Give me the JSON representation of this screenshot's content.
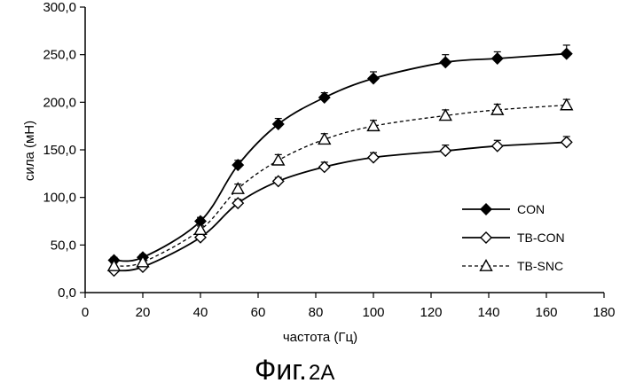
{
  "caption": {
    "main": "Фиг.",
    "suffix": "2A"
  },
  "chart_data": {
    "type": "line",
    "xlabel": "частота (Гц)",
    "ylabel": "сила (мН)",
    "xlim": [
      0,
      180
    ],
    "ylim": [
      0,
      300
    ],
    "xticks": [
      "0",
      "20",
      "40",
      "60",
      "80",
      "100",
      "120",
      "140",
      "160",
      "180"
    ],
    "yticks": [
      "0,0",
      "50,0",
      "100,0",
      "150,0",
      "200,0",
      "250,0",
      "300,0"
    ],
    "grid": false,
    "legend_position": "bottom-right",
    "series": [
      {
        "name": "CON",
        "marker": "filled-diamond",
        "line_style": "solid",
        "x": [
          10,
          20,
          40,
          53,
          67,
          83,
          100,
          125,
          143,
          167
        ],
        "y": [
          34,
          37,
          75,
          134,
          177,
          205,
          225,
          242,
          246,
          251
        ],
        "err": [
          3,
          3,
          4,
          5,
          6,
          5,
          7,
          8,
          7,
          9
        ]
      },
      {
        "name": "TB-CON",
        "marker": "open-diamond",
        "line_style": "solid",
        "x": [
          10,
          20,
          40,
          53,
          67,
          83,
          100,
          125,
          143,
          167
        ],
        "y": [
          23,
          27,
          58,
          94,
          117,
          132,
          142,
          149,
          154,
          158
        ],
        "err": [
          3,
          3,
          4,
          4,
          4,
          5,
          5,
          6,
          6,
          6
        ]
      },
      {
        "name": "TB-SNC",
        "marker": "open-triangle",
        "line_style": "dashed",
        "x": [
          10,
          20,
          40,
          53,
          67,
          83,
          100,
          125,
          143,
          167
        ],
        "y": [
          28,
          32,
          66,
          109,
          139,
          161,
          175,
          186,
          192,
          197
        ],
        "err": [
          3,
          3,
          4,
          5,
          6,
          6,
          6,
          6,
          6,
          6
        ]
      }
    ]
  }
}
